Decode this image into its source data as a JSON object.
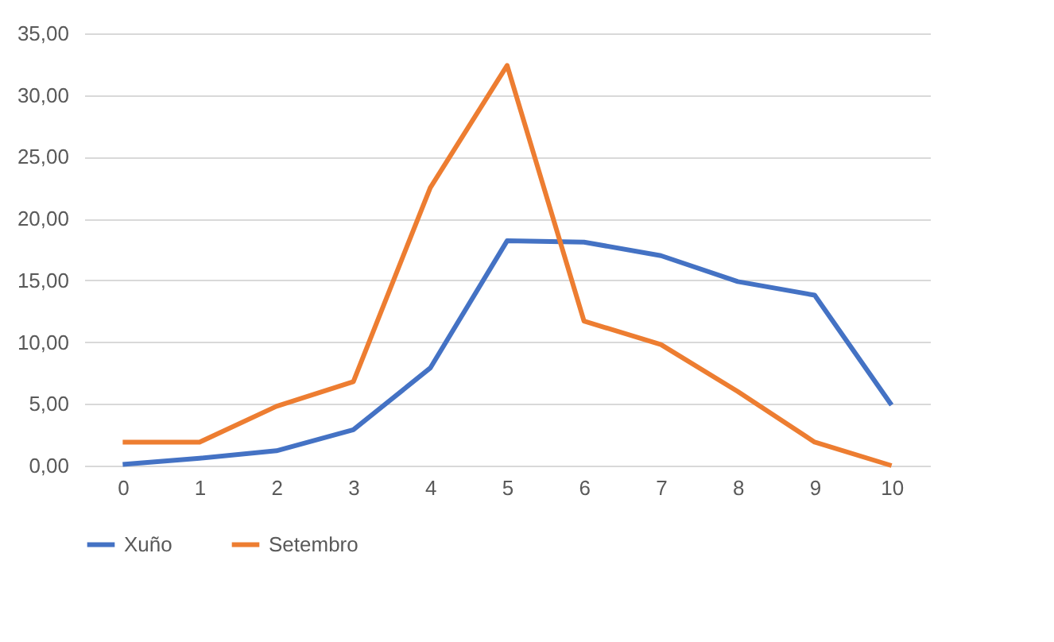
{
  "chart_data": {
    "type": "line",
    "categories": [
      "0",
      "1",
      "2",
      "3",
      "4",
      "5",
      "6",
      "7",
      "8",
      "9",
      "10"
    ],
    "series": [
      {
        "name": "Xuño",
        "color": "#4472c4",
        "values": [
          0.1,
          0.6,
          1.2,
          2.9,
          7.9,
          18.2,
          18.1,
          17.0,
          14.9,
          13.8,
          4.9
        ]
      },
      {
        "name": "Setembro",
        "color": "#ed7d31",
        "values": [
          1.9,
          1.9,
          4.8,
          6.8,
          22.5,
          32.4,
          11.7,
          9.8,
          6.0,
          1.9,
          0.0
        ]
      }
    ],
    "ylim": [
      0,
      35
    ],
    "yticks": [
      {
        "value": 0,
        "label": "0,00"
      },
      {
        "value": 5,
        "label": "5,00"
      },
      {
        "value": 10,
        "label": "10,00"
      },
      {
        "value": 15,
        "label": "15,00"
      },
      {
        "value": 20,
        "label": "20,00"
      },
      {
        "value": 25,
        "label": "25,00"
      },
      {
        "value": 30,
        "label": "30,00"
      },
      {
        "value": 35,
        "label": "35,00"
      }
    ],
    "grid": "y",
    "legend": "bottom",
    "marker": "none",
    "line_style": "solid"
  }
}
